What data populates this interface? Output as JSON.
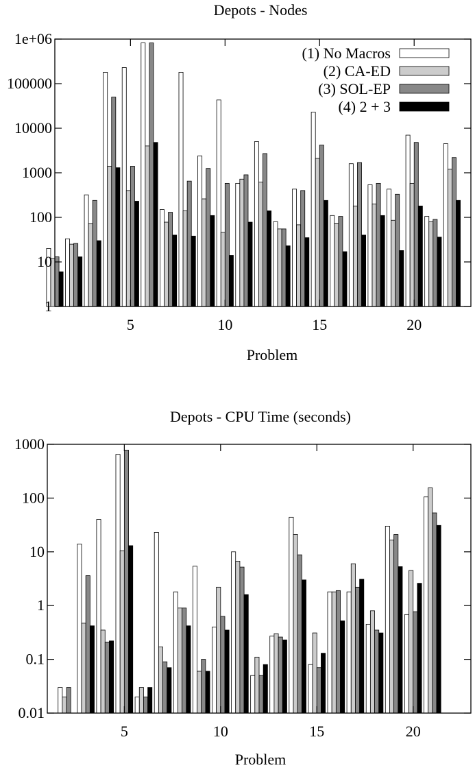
{
  "chart_data": [
    {
      "type": "bar",
      "title": "Depots - Nodes",
      "xlabel": "Problem",
      "ylabel": "",
      "yscale": "log",
      "ylim": [
        1,
        1000000
      ],
      "xlim": [
        1,
        23
      ],
      "y_ticks": [
        1,
        10,
        100,
        1000,
        10000,
        100000,
        1000000
      ],
      "y_tick_labels": [
        "1",
        "10",
        "100",
        "1000",
        "10000",
        "100000",
        "1e+06"
      ],
      "x_ticks": [
        5,
        10,
        15,
        20
      ],
      "x_tick_labels": [
        "5",
        "10",
        "15",
        "20"
      ],
      "legend_position": "top-right",
      "grid": false,
      "categories": [
        1,
        2,
        3,
        4,
        5,
        6,
        7,
        8,
        9,
        10,
        11,
        12,
        13,
        14,
        15,
        16,
        17,
        18,
        19,
        20,
        21,
        22
      ],
      "series": [
        {
          "name": "(1) No Macros",
          "color": "#ffffff",
          "values": [
            20,
            33,
            320,
            180000,
            230000,
            820000,
            150,
            180000,
            2400,
            43000,
            580,
            5000,
            80,
            430,
            23000,
            110,
            1600,
            540,
            430,
            7000,
            105,
            4500
          ]
        },
        {
          "name": "(2) CA-ED",
          "color": "#cccccc",
          "values": [
            12,
            25,
            73,
            1400,
            400,
            4000,
            78,
            140,
            260,
            46,
            720,
            620,
            55,
            68,
            2100,
            74,
            180,
            200,
            86,
            580,
            80,
            1200
          ]
        },
        {
          "name": "(3) SOL-EP",
          "color": "#888888",
          "values": [
            13,
            26,
            240,
            50000,
            1400,
            820000,
            130,
            650,
            1250,
            580,
            900,
            2700,
            55,
            400,
            4200,
            105,
            1700,
            580,
            330,
            4800,
            90,
            2200
          ]
        },
        {
          "name": "(4) 2 + 3",
          "color": "#000000",
          "values": [
            6,
            13,
            30,
            1300,
            230,
            4800,
            40,
            38,
            110,
            14,
            78,
            140,
            23,
            35,
            240,
            17,
            40,
            110,
            18,
            180,
            36,
            240
          ]
        }
      ]
    },
    {
      "type": "bar",
      "title": "Depots - CPU Time (seconds)",
      "xlabel": "Problem",
      "ylabel": "",
      "yscale": "log",
      "ylim": [
        0.01,
        1000
      ],
      "xlim": [
        1,
        23
      ],
      "y_ticks": [
        0.01,
        0.1,
        1,
        10,
        100,
        1000
      ],
      "y_tick_labels": [
        "0.01",
        "0.1",
        "1",
        "10",
        "100",
        "1000"
      ],
      "x_ticks": [
        5,
        10,
        15,
        20
      ],
      "x_tick_labels": [
        "5",
        "10",
        "15",
        "20"
      ],
      "grid": false,
      "categories": [
        1,
        2,
        3,
        4,
        5,
        6,
        7,
        8,
        9,
        10,
        11,
        12,
        13,
        14,
        15,
        16,
        17,
        18,
        19,
        20,
        21,
        22
      ],
      "series": [
        {
          "name": "(1) No Macros",
          "color": "#ffffff",
          "values": [
            null,
            0.03,
            14,
            40,
            650,
            0.02,
            23,
            1.8,
            5.4,
            0.4,
            10,
            0.05,
            0.27,
            44,
            0.08,
            1.8,
            1.8,
            0.45,
            30,
            0.68,
            105,
            null
          ]
        },
        {
          "name": "(2) CA-ED",
          "color": "#cccccc",
          "values": [
            null,
            0.02,
            0.47,
            0.35,
            10.5,
            0.03,
            0.17,
            0.9,
            0.06,
            2.2,
            6.7,
            0.11,
            0.3,
            21,
            0.31,
            1.8,
            6,
            0.8,
            16.5,
            4.5,
            155,
            null
          ]
        },
        {
          "name": "(3) SOL-EP",
          "color": "#888888",
          "values": [
            null,
            0.03,
            3.6,
            0.21,
            780,
            0.02,
            0.09,
            0.9,
            0.1,
            0.63,
            5.2,
            0.05,
            0.26,
            8.8,
            0.07,
            1.9,
            2.2,
            0.35,
            21,
            0.77,
            53,
            null
          ]
        },
        {
          "name": "(4) 2 + 3",
          "color": "#000000",
          "values": [
            null,
            null,
            0.42,
            0.22,
            13,
            0.03,
            0.07,
            0.42,
            0.06,
            0.35,
            1.6,
            0.08,
            0.23,
            3,
            0.13,
            0.52,
            3.1,
            0.31,
            5.3,
            2.6,
            31,
            null
          ]
        }
      ]
    }
  ]
}
